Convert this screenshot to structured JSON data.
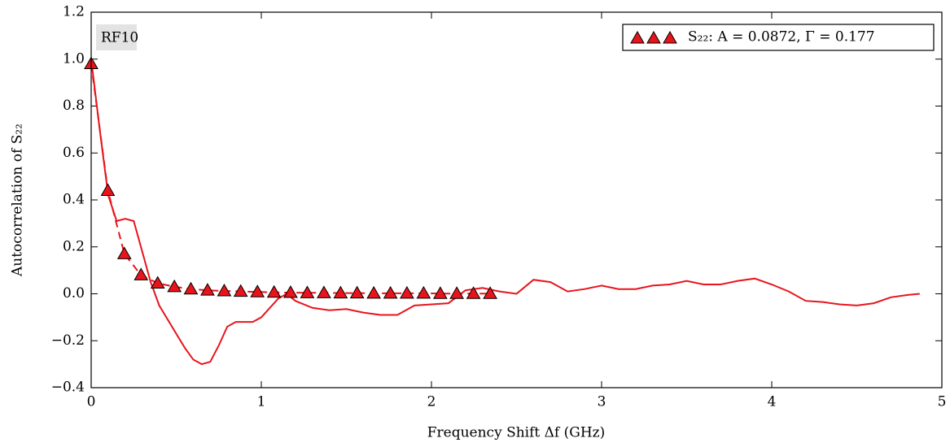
{
  "chart_data": {
    "type": "line",
    "x_label": "Frequency Shift Δf  (GHz)",
    "y_label": "Autocorrelation of S₂₂",
    "annotation": "RF10",
    "xlim": [
      0,
      5
    ],
    "xticks": [
      0,
      1,
      2,
      3,
      4,
      5
    ],
    "ylim": [
      -0.4,
      1.2
    ],
    "yticks": [
      {
        "value": -0.4,
        "label": "−0.4"
      },
      {
        "value": -0.2,
        "label": "−0.2"
      },
      {
        "value": 0,
        "label": "0.0"
      },
      0.2,
      0.4,
      0.6,
      0.8,
      {
        "value": 1,
        "label": "1.0"
      },
      1.2
    ],
    "legend": "upper right",
    "series": [
      {
        "color": "#e8141c",
        "style": "solid",
        "x": [
          0,
          0.05,
          0.1,
          0.15,
          0.2,
          0.25,
          0.3,
          0.35,
          0.4,
          0.45,
          0.5,
          0.55,
          0.6,
          0.65,
          0.7,
          0.75,
          0.8,
          0.85,
          0.9,
          0.95,
          1.0,
          1.05,
          1.1,
          1.15,
          1.2,
          1.3,
          1.4,
          1.5,
          1.6,
          1.7,
          1.8,
          1.9,
          2.0,
          2.1,
          2.2,
          2.3,
          2.4,
          2.5,
          2.55,
          2.6,
          2.7,
          2.8,
          2.9,
          3.0,
          3.1,
          3.2,
          3.3,
          3.4,
          3.5,
          3.6,
          3.7,
          3.8,
          3.9,
          4.0,
          4.1,
          4.2,
          4.3,
          4.4,
          4.5,
          4.6,
          4.7,
          4.8,
          4.87
        ],
        "values": [
          1.0,
          0.7,
          0.42,
          0.31,
          0.32,
          0.31,
          0.18,
          0.05,
          -0.05,
          -0.11,
          -0.17,
          -0.23,
          -0.28,
          -0.3,
          -0.29,
          -0.22,
          -0.14,
          -0.12,
          -0.12,
          -0.12,
          -0.1,
          -0.06,
          -0.02,
          0.0,
          -0.03,
          -0.06,
          -0.07,
          -0.065,
          -0.08,
          -0.09,
          -0.09,
          -0.05,
          -0.045,
          -0.04,
          0.015,
          0.025,
          0.01,
          0.0,
          0.03,
          0.06,
          0.05,
          0.01,
          0.02,
          0.035,
          0.02,
          0.02,
          0.035,
          0.04,
          0.055,
          0.04,
          0.04,
          0.055,
          0.065,
          0.04,
          0.01,
          -0.03,
          -0.035,
          -0.045,
          -0.05,
          -0.04,
          -0.015,
          -0.005,
          0.0
        ]
      },
      {
        "name": "S₂₂: A = 0.0872, Γ = 0.177",
        "color": "#e8141c",
        "style": "dashed",
        "marker": "triangle",
        "x": [
          0,
          0.098,
          0.195,
          0.293,
          0.391,
          0.489,
          0.586,
          0.684,
          0.782,
          0.879,
          0.977,
          1.075,
          1.172,
          1.27,
          1.368,
          1.466,
          1.563,
          1.661,
          1.759,
          1.856,
          1.954,
          2.052,
          2.149,
          2.247,
          2.345
        ],
        "values": [
          0.98,
          0.44,
          0.17,
          0.08,
          0.045,
          0.03,
          0.02,
          0.015,
          0.012,
          0.01,
          0.008,
          0.006,
          0.005,
          0.004,
          0.004,
          0.003,
          0.003,
          0.002,
          0.002,
          0.002,
          0.002,
          0.001,
          0.001,
          0.001,
          0.001
        ]
      }
    ]
  }
}
